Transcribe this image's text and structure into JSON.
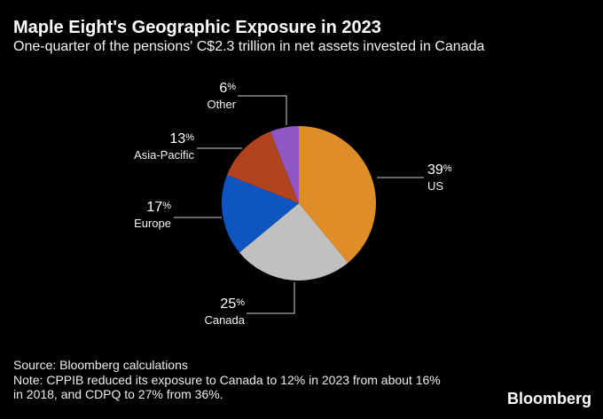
{
  "header": {
    "title": "Maple Eight's Geographic Exposure in 2023",
    "subtitle": "One-quarter of the pensions' C$2.3 trillion in net assets invested in Canada"
  },
  "chart_data": {
    "type": "pie",
    "title": "Maple Eight's Geographic Exposure in 2023",
    "subtitle": "One-quarter of the pensions' C$2.3 trillion in net assets invested in Canada",
    "unit": "%",
    "start_angle_deg": 0,
    "direction": "clockwise",
    "slices": [
      {
        "label": "US",
        "value": 39,
        "color": "#DE8D28"
      },
      {
        "label": "Canada",
        "value": 25,
        "color": "#C0C0C0"
      },
      {
        "label": "Europe",
        "value": 17,
        "color": "#0F55C2"
      },
      {
        "label": "Asia-Pacific",
        "value": 13,
        "color": "#B2431F"
      },
      {
        "label": "Other",
        "value": 6,
        "color": "#8E57C2"
      }
    ],
    "labels_outside": true,
    "legend": "none"
  },
  "callouts": {
    "us": {
      "value": "39",
      "unit": "%",
      "name": "US"
    },
    "canada": {
      "value": "25",
      "unit": "%",
      "name": "Canada"
    },
    "europe": {
      "value": "17",
      "unit": "%",
      "name": "Europe"
    },
    "asia_pacific": {
      "value": "13",
      "unit": "%",
      "name": "Asia-Pacific"
    },
    "other": {
      "value": "6",
      "unit": "%",
      "name": "Other"
    }
  },
  "footer": {
    "source": "Source: Bloomberg calculations",
    "note_line1": "Note: CPPIB reduced its exposure to Canada to 12% in 2023 from about 16%",
    "note_line2": "in 2018, and CDPQ to 27% from 36%.",
    "brand": "Bloomberg"
  },
  "colors": {
    "background": "#000000",
    "text": "#FFFFFF",
    "leader_line": "#CFCFCF"
  }
}
